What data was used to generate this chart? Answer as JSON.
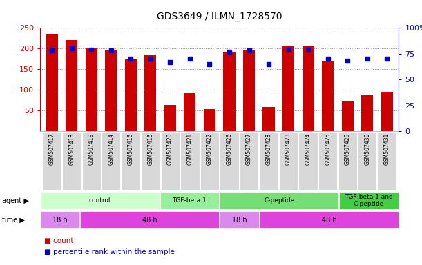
{
  "title": "GDS3649 / ILMN_1728570",
  "samples": [
    "GSM507417",
    "GSM507418",
    "GSM507419",
    "GSM507414",
    "GSM507415",
    "GSM507416",
    "GSM507420",
    "GSM507421",
    "GSM507422",
    "GSM507426",
    "GSM507427",
    "GSM507428",
    "GSM507423",
    "GSM507424",
    "GSM507425",
    "GSM507429",
    "GSM507430",
    "GSM507431"
  ],
  "counts": [
    235,
    220,
    200,
    195,
    174,
    185,
    63,
    92,
    53,
    192,
    196,
    58,
    205,
    205,
    170,
    74,
    87,
    93
  ],
  "percentile_ranks": [
    78,
    80,
    79,
    78,
    70,
    70,
    67,
    70,
    65,
    77,
    78,
    65,
    79,
    79,
    70,
    68,
    70,
    70
  ],
  "ylim_left": [
    0,
    250
  ],
  "ylim_right": [
    0,
    100
  ],
  "yticks_left": [
    50,
    100,
    150,
    200,
    250
  ],
  "yticks_right": [
    0,
    25,
    50,
    75,
    100
  ],
  "ytick_labels_right": [
    "0",
    "25",
    "50",
    "75",
    "100%"
  ],
  "bar_color": "#CC0000",
  "dot_color": "#0000CC",
  "agent_groups": [
    {
      "label": "control",
      "start": 0,
      "end": 6,
      "color": "#ccffcc"
    },
    {
      "label": "TGF-beta 1",
      "start": 6,
      "end": 9,
      "color": "#99ee99"
    },
    {
      "label": "C-peptide",
      "start": 9,
      "end": 15,
      "color": "#77dd77"
    },
    {
      "label": "TGF-beta 1 and\nC-peptide",
      "start": 15,
      "end": 18,
      "color": "#44cc44"
    }
  ],
  "time_groups": [
    {
      "label": "18 h",
      "start": 0,
      "end": 2,
      "color": "#dd88ee"
    },
    {
      "label": "48 h",
      "start": 2,
      "end": 9,
      "color": "#dd44dd"
    },
    {
      "label": "18 h",
      "start": 9,
      "end": 11,
      "color": "#dd88ee"
    },
    {
      "label": "48 h",
      "start": 11,
      "end": 18,
      "color": "#dd44dd"
    }
  ],
  "xtick_bg_color": "#d8d8d8",
  "grid_color": "#aaaaaa",
  "spine_color": "#000000"
}
